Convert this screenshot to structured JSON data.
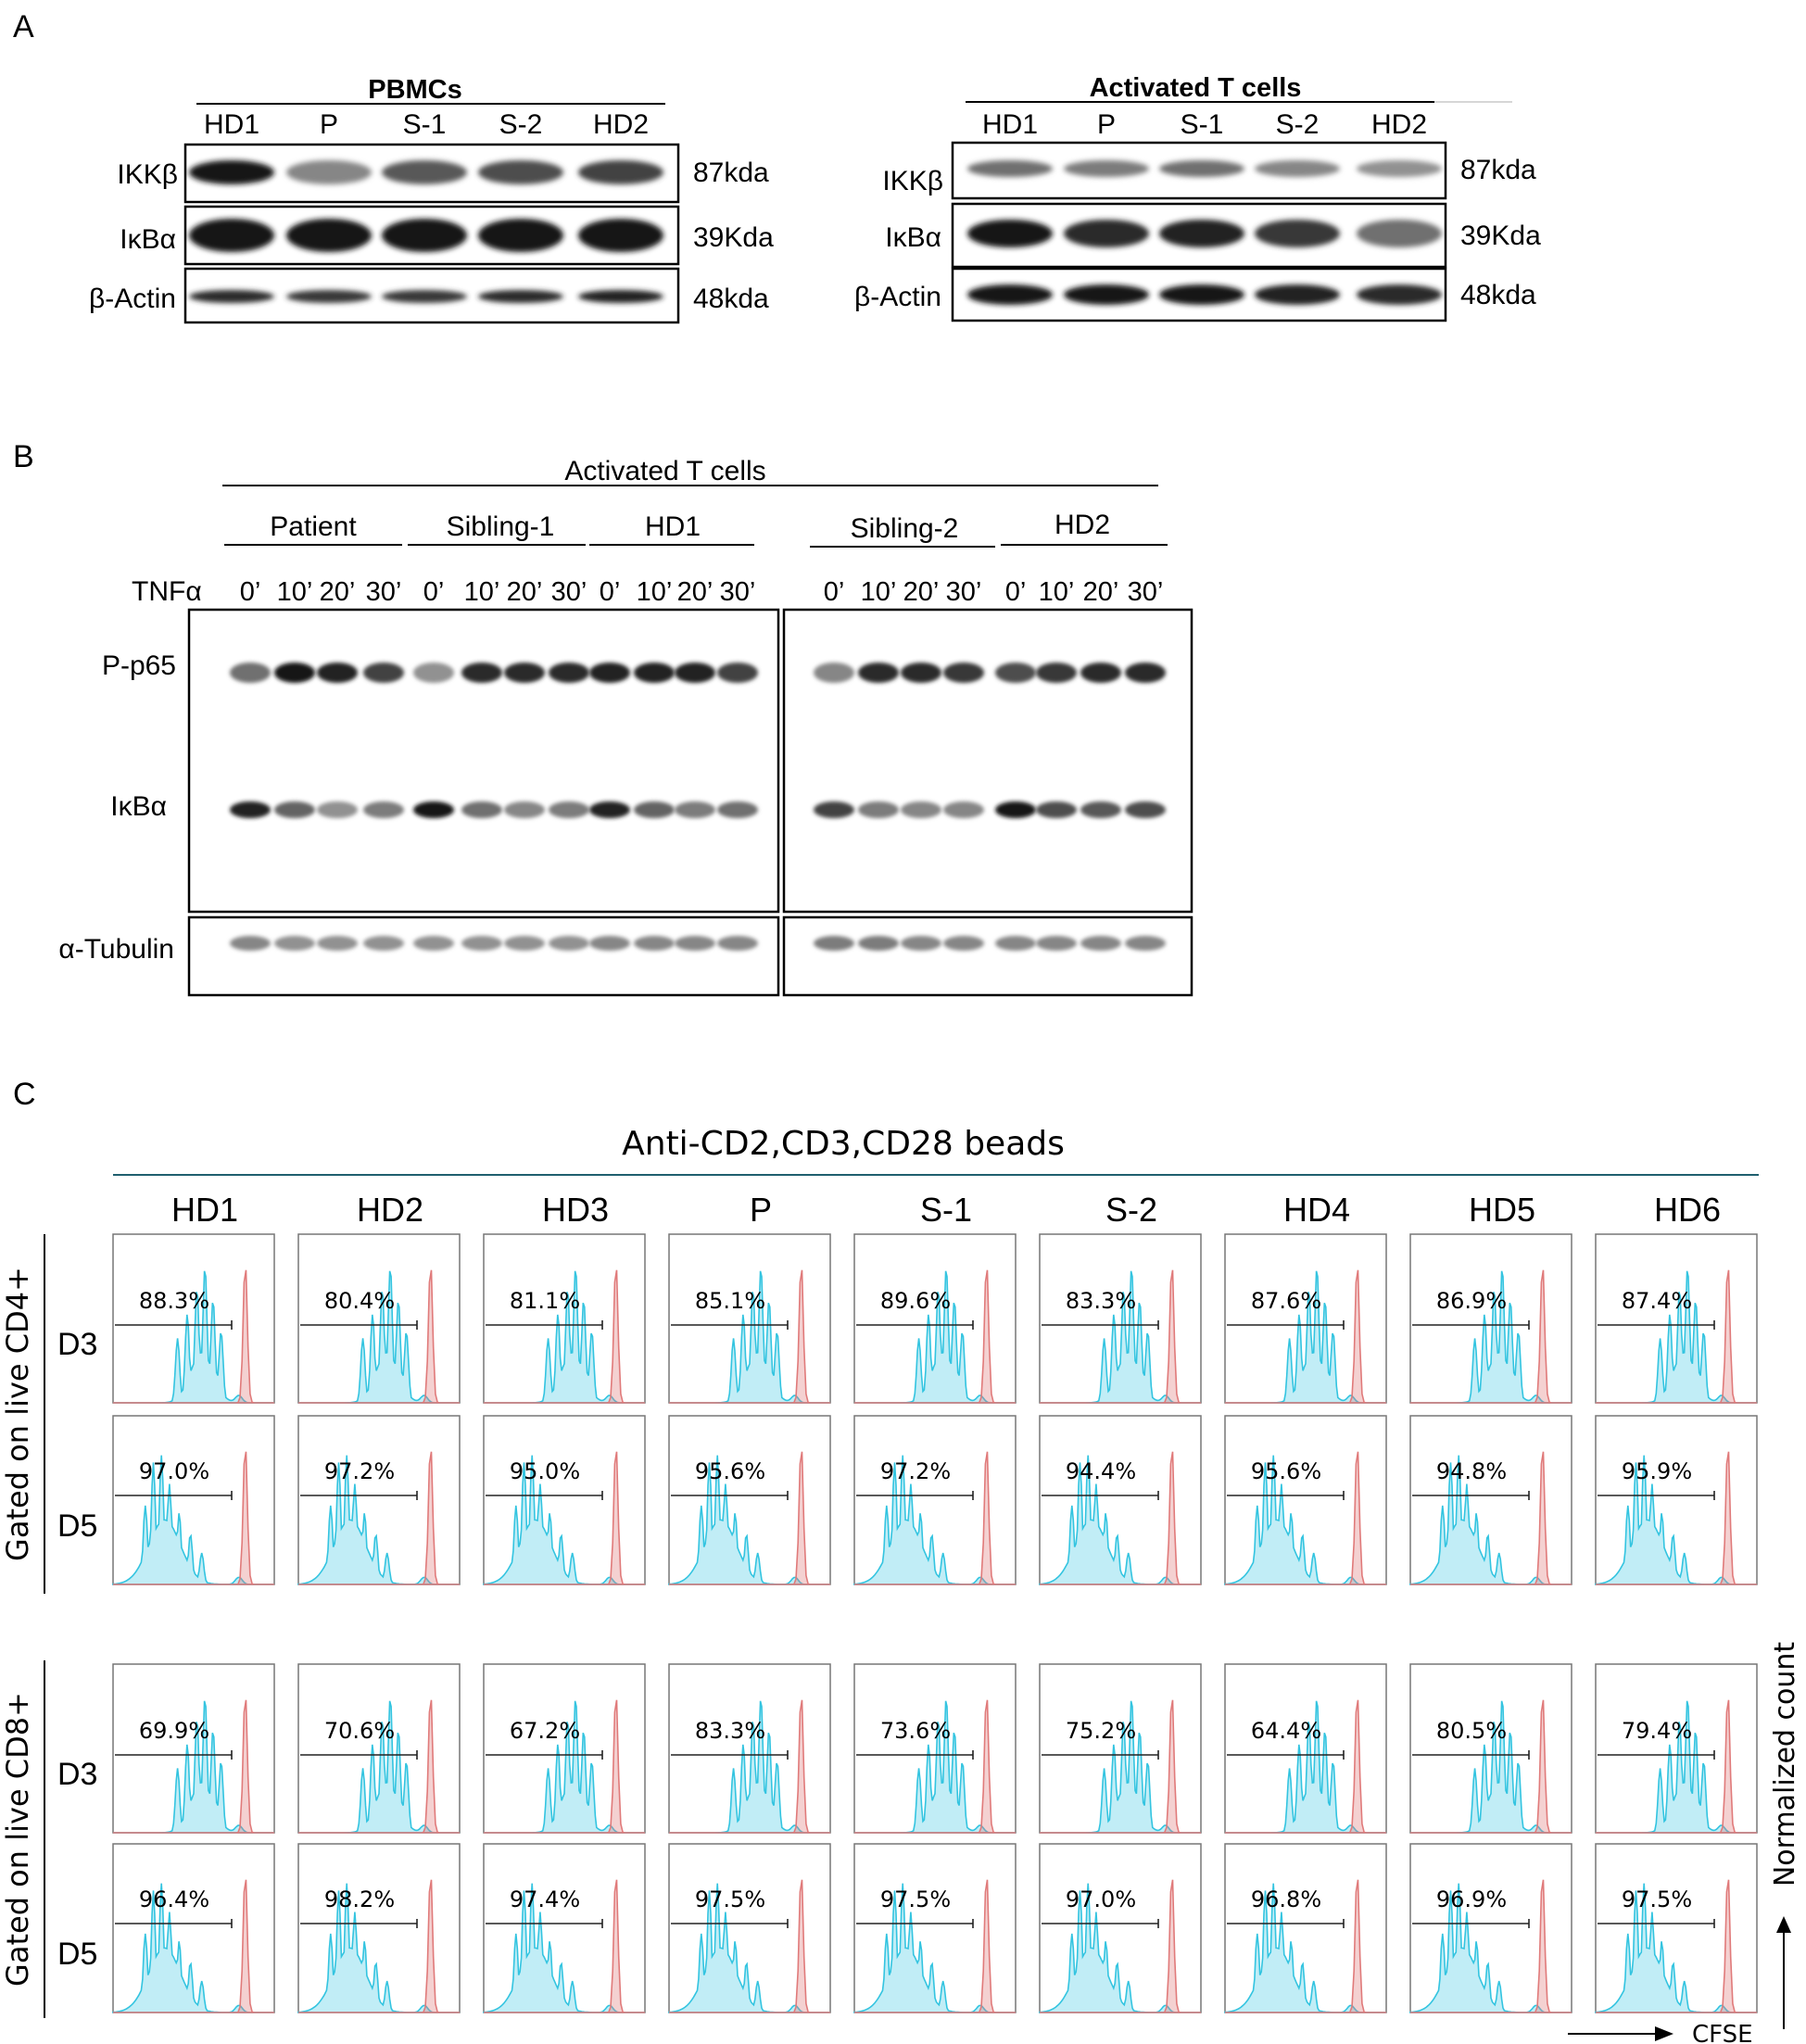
{
  "panels": {
    "a": {
      "letter": "A",
      "blots": [
        {
          "header": "PBMCs",
          "lanes": [
            "HD1",
            "P",
            "S-1",
            "S-2",
            "HD2"
          ],
          "rows": [
            {
              "label": "IKKβ",
              "size": "87kda",
              "intensity": [
                0.95,
                0.45,
                0.65,
                0.7,
                0.75
              ]
            },
            {
              "label": "IκBα",
              "size": "39Kda",
              "intensity": [
                0.95,
                0.95,
                0.95,
                0.95,
                0.95
              ]
            },
            {
              "label": "β-Actin",
              "size": "48kda",
              "intensity": [
                0.85,
                0.8,
                0.8,
                0.85,
                0.9
              ]
            }
          ]
        },
        {
          "header": "Activated T cells",
          "lanes": [
            "HD1",
            "P",
            "S-1",
            "S-2",
            "HD2"
          ],
          "rows": [
            {
              "label": "IKKβ",
              "size": "87kda",
              "intensity": [
                0.55,
                0.5,
                0.55,
                0.45,
                0.4
              ]
            },
            {
              "label": "IκBα",
              "size": "39Kda",
              "intensity": [
                0.95,
                0.85,
                0.9,
                0.8,
                0.55
              ]
            },
            {
              "label": "β-Actin",
              "size": "48kda",
              "intensity": [
                0.95,
                0.95,
                0.95,
                0.9,
                0.85
              ]
            }
          ]
        }
      ]
    },
    "b": {
      "letter": "B",
      "header": "Activated T cells",
      "groups": [
        "Patient",
        "Sibling-1",
        "HD1",
        "Sibling-2",
        "HD2"
      ],
      "treatment_label": "TNFα",
      "timepoints": [
        "0’",
        "10’",
        "20’",
        "30’"
      ],
      "rows": [
        {
          "label": "P-p65",
          "intensity": [
            0.55,
            0.95,
            0.9,
            0.75,
            0.4,
            0.85,
            0.85,
            0.85,
            0.9,
            0.9,
            0.9,
            0.75,
            0.45,
            0.85,
            0.85,
            0.8,
            0.7,
            0.8,
            0.85,
            0.85
          ]
        },
        {
          "label": "IκBα",
          "intensity": [
            0.9,
            0.6,
            0.4,
            0.5,
            0.95,
            0.55,
            0.45,
            0.5,
            0.9,
            0.6,
            0.5,
            0.55,
            0.75,
            0.5,
            0.45,
            0.45,
            0.95,
            0.7,
            0.65,
            0.7
          ]
        },
        {
          "label": "α-Tubulin",
          "intensity": [
            0.45,
            0.4,
            0.4,
            0.4,
            0.4,
            0.4,
            0.4,
            0.4,
            0.45,
            0.45,
            0.45,
            0.45,
            0.5,
            0.5,
            0.45,
            0.45,
            0.45,
            0.45,
            0.45,
            0.45
          ]
        }
      ]
    },
    "c": {
      "letter": "C",
      "header": "Anti-CD2,CD3,CD28 beads",
      "samples": [
        "HD1",
        "HD2",
        "HD3",
        "P",
        "S-1",
        "S-2",
        "HD4",
        "HD5",
        "HD6"
      ],
      "blocks": [
        {
          "gate": "Gated on live CD4+",
          "days": [
            {
              "day": "D3",
              "percent": [
                "88.3%",
                "80.4%",
                "81.1%",
                "85.1%",
                "89.6%",
                "83.3%",
                "87.6%",
                "86.9%",
                "87.4%"
              ]
            },
            {
              "day": "D5",
              "percent": [
                "97.0%",
                "97.2%",
                "95.0%",
                "95.6%",
                "97.2%",
                "94.4%",
                "95.6%",
                "94.8%",
                "95.9%"
              ]
            }
          ]
        },
        {
          "gate": "Gated on live CD8+",
          "days": [
            {
              "day": "D3",
              "percent": [
                "69.9%",
                "70.6%",
                "67.2%",
                "83.3%",
                "73.6%",
                "75.2%",
                "64.4%",
                "80.5%",
                "79.4%"
              ]
            },
            {
              "day": "D5",
              "percent": [
                "96.4%",
                "98.2%",
                "97.4%",
                "97.5%",
                "97.5%",
                "97.0%",
                "96.8%",
                "96.9%",
                "97.5%"
              ]
            }
          ]
        }
      ],
      "x_axis_label": "CFSE",
      "y_axis_label": "Normalized count",
      "colors": {
        "divided": "#33c4e0",
        "undivided": "#e07a7a"
      }
    }
  }
}
